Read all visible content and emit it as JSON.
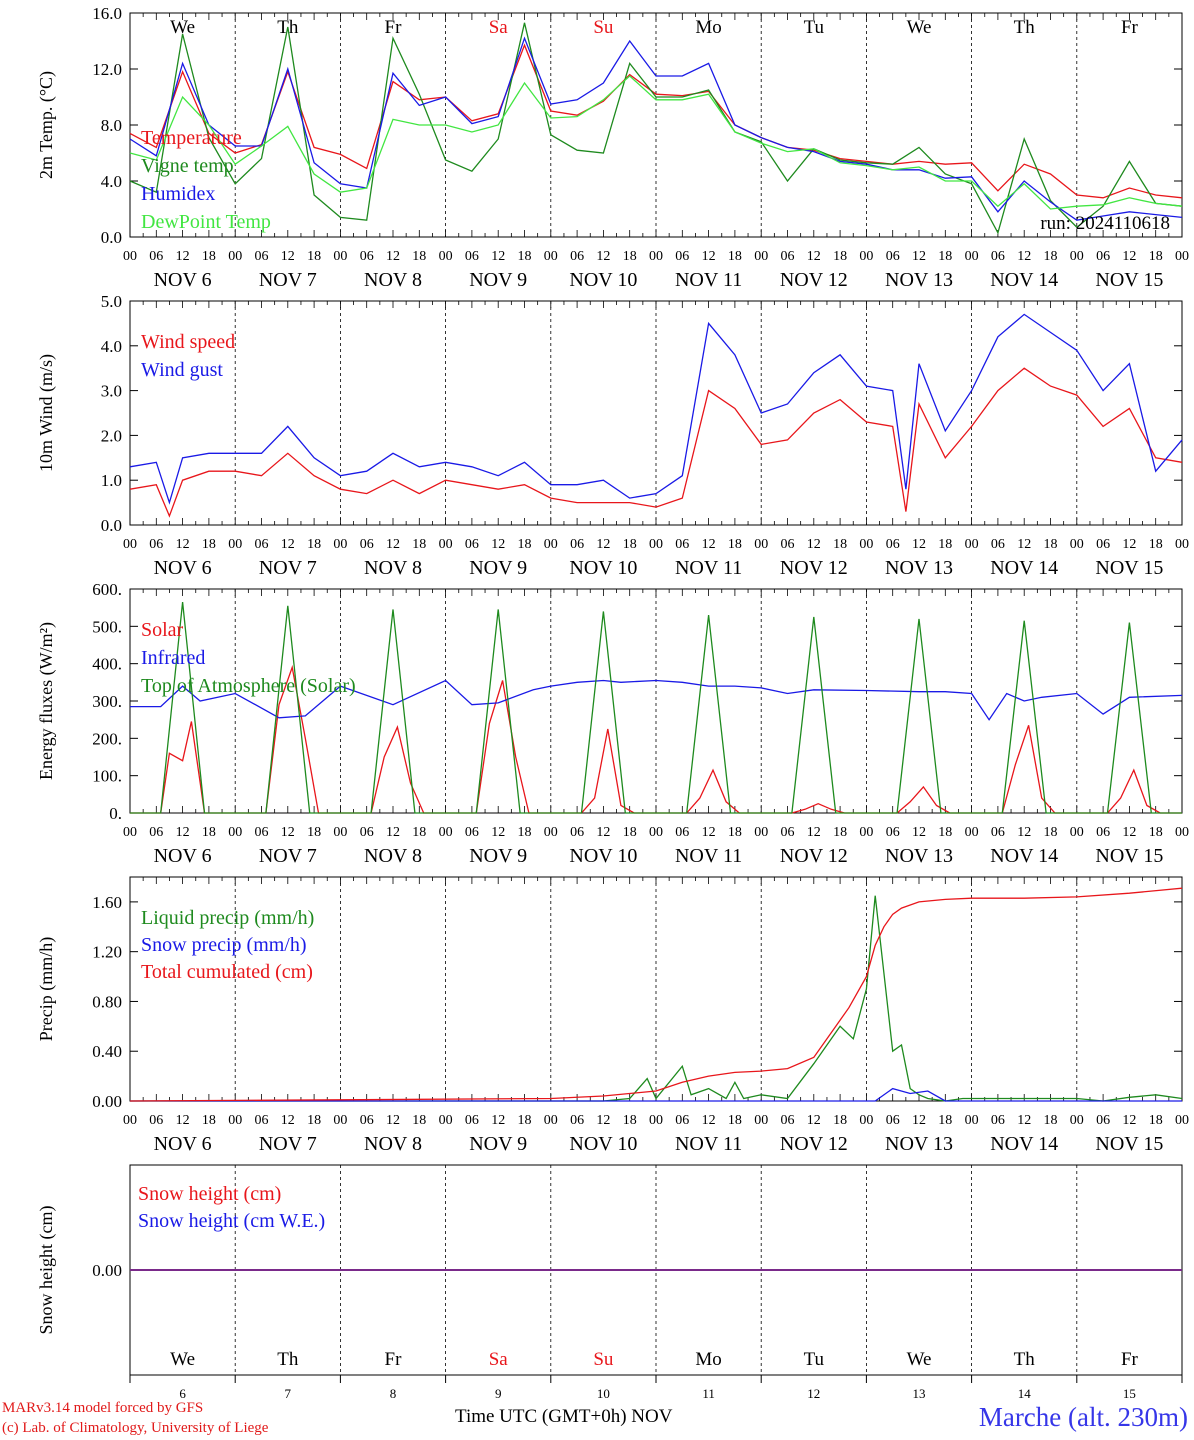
{
  "footer": {
    "credit_line1": "MARv3.14 model forced by GFS",
    "credit_line2": "(c) Lab. of Climatology, University of Liege",
    "time_axis_label": "Time UTC (GMT+0h) NOV",
    "station": "Marche (alt. 230m)"
  },
  "colors": {
    "red": "#e8161b",
    "blue": "#1a1ae6",
    "green": "#1e8a1e",
    "light_green": "#42e642",
    "purple": "#7a2a8a",
    "grid": "#000000"
  },
  "weekdays": [
    "We",
    "Th",
    "Fr",
    "Sa",
    "Su",
    "Mo",
    "Tu",
    "We",
    "Th",
    "Fr"
  ],
  "weekday_colors": [
    "black",
    "black",
    "black",
    "red",
    "red",
    "black",
    "black",
    "black",
    "black",
    "black"
  ],
  "date_labels": [
    "NOV  6",
    "NOV  7",
    "NOV  8",
    "NOV  9",
    "NOV 10",
    "NOV 11",
    "NOV 12",
    "NOV 13",
    "NOV 14",
    "NOV 15"
  ],
  "hour_labels": [
    "00",
    "06",
    "12",
    "18"
  ],
  "bottom_day_numbers": [
    "6",
    "7",
    "8",
    "9",
    "10",
    "11",
    "12",
    "13",
    "14",
    "15"
  ],
  "chart_data": [
    {
      "type": "line",
      "ylabel": "2m Temp. (°C)",
      "ylim": [
        0,
        16
      ],
      "yticks": [
        "0.0",
        "4.0",
        "8.0",
        "12.0",
        "16.0"
      ],
      "x_unit": "hours since NOV 6 00 UTC",
      "annotation": "run: 2024110618",
      "series": [
        {
          "name": "Temperature",
          "color": "red",
          "x": [
            0,
            6,
            12,
            18,
            24,
            30,
            36,
            42,
            48,
            54,
            60,
            66,
            72,
            78,
            84,
            90,
            96,
            102,
            108,
            114,
            120,
            126,
            132,
            138,
            144,
            150,
            156,
            162,
            168,
            174,
            180,
            186,
            192,
            198,
            204,
            210,
            216,
            222,
            228,
            234,
            240
          ],
          "y": [
            7.4,
            6.4,
            11.8,
            7.4,
            6.0,
            6.6,
            11.8,
            6.4,
            5.9,
            4.9,
            11.1,
            9.8,
            10.0,
            8.3,
            8.8,
            13.7,
            9.0,
            8.7,
            9.7,
            11.6,
            10.2,
            10.1,
            10.4,
            8.0,
            7.1,
            6.4,
            6.2,
            5.6,
            5.4,
            5.2,
            5.4,
            5.2,
            5.3,
            3.3,
            5.2,
            4.5,
            3.0,
            2.8,
            3.5,
            3.0,
            2.8
          ]
        },
        {
          "name": "Vigne temp",
          "color": "green",
          "x": [
            0,
            6,
            12,
            18,
            24,
            30,
            36,
            42,
            48,
            54,
            60,
            66,
            72,
            78,
            84,
            90,
            96,
            102,
            108,
            114,
            120,
            126,
            132,
            138,
            144,
            150,
            156,
            162,
            168,
            174,
            180,
            186,
            192,
            198,
            204,
            210,
            216,
            222,
            228,
            234,
            240
          ],
          "y": [
            4.0,
            3.2,
            14.5,
            7.1,
            3.8,
            5.6,
            15.0,
            3.0,
            1.4,
            1.2,
            14.2,
            10.2,
            5.5,
            4.7,
            7.0,
            15.3,
            7.3,
            6.2,
            6.0,
            12.4,
            10.0,
            10.0,
            10.5,
            7.5,
            6.8,
            4.0,
            6.3,
            5.5,
            5.3,
            5.2,
            6.4,
            4.5,
            3.8,
            0.3,
            7.0,
            2.6,
            0.7,
            2.2,
            5.4,
            2.4,
            2.2
          ]
        },
        {
          "name": "Humidex",
          "color": "blue",
          "x": [
            0,
            6,
            12,
            18,
            24,
            30,
            36,
            42,
            48,
            54,
            60,
            66,
            72,
            78,
            84,
            90,
            96,
            102,
            108,
            114,
            120,
            126,
            132,
            138,
            144,
            150,
            156,
            162,
            168,
            174,
            180,
            186,
            192,
            198,
            204,
            210,
            216,
            222,
            228,
            234,
            240
          ],
          "y": [
            7.0,
            5.8,
            12.4,
            8.0,
            6.5,
            6.5,
            12.0,
            5.3,
            3.8,
            3.5,
            11.7,
            9.4,
            10.0,
            8.1,
            8.6,
            14.2,
            9.5,
            9.8,
            11.0,
            14.0,
            11.5,
            11.5,
            12.4,
            8.0,
            7.1,
            6.4,
            6.1,
            5.4,
            5.2,
            4.8,
            4.8,
            4.2,
            4.3,
            1.8,
            4.0,
            2.5,
            1.2,
            1.5,
            1.8,
            1.6,
            1.4
          ]
        },
        {
          "name": "DewPoint Temp",
          "color": "light_green",
          "x": [
            0,
            6,
            12,
            18,
            24,
            30,
            36,
            42,
            48,
            54,
            60,
            66,
            72,
            78,
            84,
            90,
            96,
            102,
            108,
            114,
            120,
            126,
            132,
            138,
            144,
            150,
            156,
            162,
            168,
            174,
            180,
            186,
            192,
            198,
            204,
            210,
            216,
            222,
            228,
            234,
            240
          ],
          "y": [
            6.0,
            5.5,
            10.0,
            8.0,
            5.2,
            6.5,
            7.9,
            4.5,
            3.2,
            3.5,
            8.4,
            8.0,
            8.0,
            7.5,
            8.0,
            11.0,
            8.5,
            8.6,
            9.8,
            11.5,
            9.8,
            9.8,
            10.2,
            7.5,
            6.7,
            6.1,
            6.3,
            5.3,
            5.1,
            4.8,
            5.0,
            4.0,
            4.0,
            2.2,
            3.8,
            2.0,
            2.2,
            2.3,
            2.8,
            2.4,
            2.2
          ]
        }
      ]
    },
    {
      "type": "line",
      "ylabel": "10m Wind (m/s)",
      "ylim": [
        0,
        5
      ],
      "yticks": [
        "0.0",
        "1.0",
        "2.0",
        "3.0",
        "4.0",
        "5.0"
      ],
      "series": [
        {
          "name": "Wind speed",
          "color": "red",
          "x": [
            0,
            6,
            9,
            12,
            18,
            24,
            30,
            36,
            42,
            48,
            54,
            60,
            66,
            72,
            78,
            84,
            90,
            96,
            102,
            108,
            114,
            120,
            126,
            132,
            138,
            144,
            150,
            156,
            162,
            168,
            174,
            177,
            180,
            186,
            192,
            198,
            204,
            210,
            216,
            222,
            228,
            234,
            240
          ],
          "y": [
            0.8,
            0.9,
            0.2,
            1.0,
            1.2,
            1.2,
            1.1,
            1.6,
            1.1,
            0.8,
            0.7,
            1.0,
            0.7,
            1.0,
            0.9,
            0.8,
            0.9,
            0.6,
            0.5,
            0.5,
            0.5,
            0.4,
            0.6,
            3.0,
            2.6,
            1.8,
            1.9,
            2.5,
            2.8,
            2.3,
            2.2,
            0.3,
            2.7,
            1.5,
            2.2,
            3.0,
            3.5,
            3.1,
            2.9,
            2.2,
            2.6,
            1.5,
            1.4
          ]
        },
        {
          "name": "Wind gust",
          "color": "blue",
          "x": [
            0,
            6,
            9,
            12,
            18,
            24,
            30,
            36,
            42,
            48,
            54,
            60,
            66,
            72,
            78,
            84,
            90,
            96,
            102,
            108,
            114,
            120,
            126,
            132,
            138,
            144,
            150,
            156,
            162,
            168,
            174,
            177,
            180,
            186,
            192,
            198,
            204,
            210,
            216,
            222,
            228,
            234,
            240
          ],
          "y": [
            1.3,
            1.4,
            0.5,
            1.5,
            1.6,
            1.6,
            1.6,
            2.2,
            1.5,
            1.1,
            1.2,
            1.6,
            1.3,
            1.4,
            1.3,
            1.1,
            1.4,
            0.9,
            0.9,
            1.0,
            0.6,
            0.7,
            1.1,
            4.5,
            3.8,
            2.5,
            2.7,
            3.4,
            3.8,
            3.1,
            3.0,
            0.8,
            3.6,
            2.1,
            3.0,
            4.2,
            4.7,
            4.3,
            3.9,
            3.0,
            3.6,
            1.2,
            1.9
          ]
        }
      ]
    },
    {
      "type": "line",
      "ylabel": "Energy fluxes (W/m²)",
      "ylim": [
        0,
        600
      ],
      "yticks": [
        "0.",
        "100.",
        "200.",
        "300.",
        "400.",
        "500.",
        "600."
      ],
      "series": [
        {
          "name": "Solar",
          "color": "red",
          "x": [
            0,
            7,
            9,
            12,
            14,
            17,
            19,
            24,
            31,
            34,
            37,
            40,
            43,
            48,
            55,
            58,
            61,
            64,
            67,
            72,
            79,
            82,
            85,
            88,
            91,
            96,
            103,
            106,
            109,
            112,
            115,
            120,
            127,
            130,
            133,
            136,
            139,
            144,
            151,
            154,
            157,
            160,
            163,
            168,
            175,
            178,
            181,
            184,
            187,
            192,
            199,
            202,
            205,
            208,
            211,
            216,
            223,
            226,
            229,
            232,
            235,
            240
          ],
          "y": [
            0,
            0,
            160,
            140,
            245,
            0,
            0,
            0,
            0,
            290,
            390,
            200,
            0,
            0,
            0,
            150,
            230,
            80,
            0,
            0,
            0,
            240,
            355,
            150,
            0,
            0,
            0,
            40,
            225,
            20,
            0,
            0,
            0,
            40,
            115,
            30,
            0,
            0,
            0,
            10,
            25,
            10,
            0,
            0,
            0,
            30,
            70,
            20,
            0,
            0,
            0,
            130,
            235,
            40,
            0,
            0,
            0,
            40,
            115,
            20,
            0,
            0
          ]
        },
        {
          "name": "Infrared",
          "color": "blue",
          "x": [
            0,
            7,
            12,
            16,
            24,
            34,
            40,
            48,
            60,
            72,
            78,
            84,
            92,
            96,
            102,
            108,
            112,
            120,
            126,
            132,
            138,
            144,
            150,
            156,
            168,
            180,
            186,
            192,
            196,
            200,
            204,
            208,
            216,
            222,
            228,
            240
          ],
          "y": [
            285,
            285,
            340,
            300,
            320,
            255,
            260,
            340,
            290,
            355,
            290,
            295,
            330,
            340,
            350,
            355,
            350,
            355,
            350,
            340,
            340,
            335,
            320,
            330,
            328,
            325,
            325,
            320,
            250,
            320,
            300,
            310,
            320,
            265,
            310,
            315
          ]
        },
        {
          "name": "Top of Atmosphere (Solar)",
          "color": "green",
          "x": [
            0,
            7,
            12,
            17,
            24,
            31,
            36,
            41,
            48,
            55,
            60,
            65,
            72,
            79,
            84,
            89,
            96,
            103,
            108,
            113,
            120,
            127,
            132,
            137,
            144,
            151,
            156,
            161,
            168,
            175,
            180,
            185,
            192,
            199,
            204,
            209,
            216,
            223,
            228,
            233,
            240
          ],
          "y": [
            0,
            0,
            565,
            0,
            0,
            0,
            555,
            0,
            0,
            0,
            545,
            0,
            0,
            0,
            545,
            0,
            0,
            0,
            540,
            0,
            0,
            0,
            530,
            0,
            0,
            0,
            525,
            0,
            0,
            0,
            520,
            0,
            0,
            0,
            515,
            0,
            0,
            0,
            510,
            0,
            0
          ]
        }
      ]
    },
    {
      "type": "line",
      "ylabel": "Precip (mm/h)",
      "ylim": [
        0,
        1.8
      ],
      "yticks": [
        "0.00",
        "0.40",
        "0.80",
        "1.20",
        "1.60"
      ],
      "series": [
        {
          "name": "Liquid precip (mm/h)",
          "color": "green",
          "x": [
            0,
            108,
            114,
            118,
            120,
            126,
            128,
            132,
            136,
            138,
            140,
            144,
            150,
            156,
            162,
            165,
            168,
            170,
            174,
            176,
            178,
            180,
            182,
            186,
            190,
            200,
            216,
            222,
            228,
            234,
            240
          ],
          "y": [
            0,
            0,
            0.02,
            0.18,
            0.02,
            0.28,
            0.05,
            0.1,
            0.02,
            0.15,
            0.02,
            0.05,
            0.02,
            0.3,
            0.6,
            0.5,
            0.9,
            1.65,
            0.4,
            0.45,
            0.1,
            0.05,
            0.02,
            0.0,
            0.02,
            0.02,
            0.02,
            0.0,
            0.03,
            0.05,
            0.02
          ]
        },
        {
          "name": "Snow precip (mm/h)",
          "color": "blue",
          "x": [
            0,
            170,
            174,
            178,
            182,
            186,
            190,
            240
          ],
          "y": [
            0,
            0,
            0.1,
            0.06,
            0.08,
            0.0,
            0.0,
            0.0
          ]
        },
        {
          "name": "Total cumulated (cm)",
          "color": "red",
          "x": [
            0,
            48,
            96,
            108,
            120,
            126,
            132,
            138,
            144,
            150,
            156,
            160,
            164,
            168,
            170,
            172,
            174,
            176,
            180,
            186,
            192,
            204,
            216,
            228,
            240
          ],
          "y": [
            0.0,
            0.01,
            0.02,
            0.04,
            0.08,
            0.15,
            0.2,
            0.23,
            0.24,
            0.26,
            0.35,
            0.55,
            0.75,
            1.0,
            1.25,
            1.4,
            1.5,
            1.55,
            1.6,
            1.62,
            1.63,
            1.63,
            1.64,
            1.67,
            1.71
          ]
        }
      ]
    },
    {
      "type": "line",
      "ylabel": "Snow height (cm)",
      "ylim": [
        -1,
        1
      ],
      "yticks": [
        "0.00"
      ],
      "series": [
        {
          "name": "Snow height (cm)",
          "color": "red",
          "x": [
            0,
            240
          ],
          "y": [
            0,
            0
          ]
        },
        {
          "name": "Snow height (cm W.E.)",
          "color": "blue",
          "x": [
            0,
            240
          ],
          "y": [
            0,
            0
          ]
        }
      ]
    }
  ]
}
